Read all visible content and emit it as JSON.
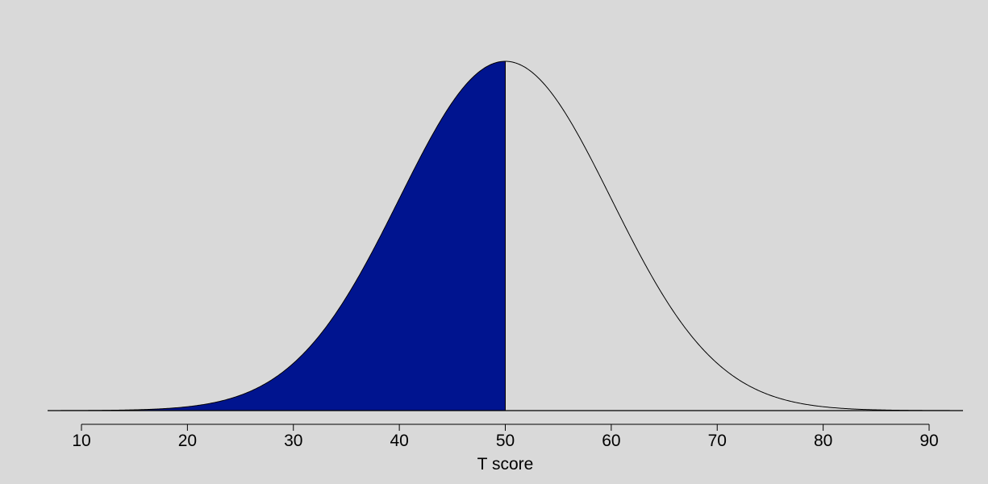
{
  "chart_data": {
    "type": "area",
    "distribution": "normal",
    "mean": 50,
    "sd": 10,
    "shaded_range": [
      10,
      50
    ],
    "shade_color": "#00148f",
    "background_color": "#d9d9d9",
    "line_color": "#000000",
    "xlabel": "T score",
    "ylabel": "",
    "xlim": [
      10,
      90
    ],
    "x_ticks": [
      10,
      20,
      30,
      40,
      50,
      60,
      70,
      80,
      90
    ],
    "tick_labels": [
      "10",
      "20",
      "30",
      "40",
      "50",
      "60",
      "70",
      "80",
      "90"
    ],
    "grid": false,
    "legend": "none"
  }
}
